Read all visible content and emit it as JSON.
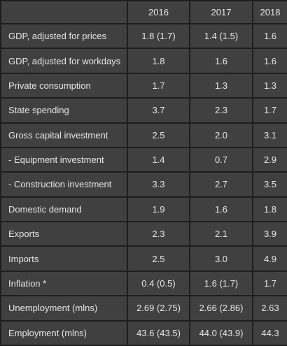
{
  "table": {
    "columns": [
      "",
      "2016",
      "2017",
      "2018"
    ],
    "rows": [
      {
        "label": "GDP, adjusted for prices",
        "values": [
          "1.8 (1.7)",
          "1.4 (1.5)",
          "1.6"
        ]
      },
      {
        "label": "GDP, adjusted for workdays",
        "values": [
          "1.8",
          "1.6",
          "1.6"
        ]
      },
      {
        "label": "Private consumption",
        "values": [
          "1.7",
          "1.3",
          "1.3"
        ]
      },
      {
        "label": "State spending",
        "values": [
          "3.7",
          "2.3",
          "1.7"
        ]
      },
      {
        "label": "Gross capital investment",
        "values": [
          "2.5",
          "2.0",
          "3.1"
        ]
      },
      {
        "label": "- Equipment investment",
        "values": [
          "1.4",
          "0.7",
          "2.9"
        ]
      },
      {
        "label": "- Construction investment",
        "values": [
          "3.3",
          "2.7",
          "3.5"
        ]
      },
      {
        "label": "Domestic demand",
        "values": [
          "1.9",
          "1.6",
          "1.8"
        ]
      },
      {
        "label": "Exports",
        "values": [
          "2.3",
          "2.1",
          "3.9"
        ]
      },
      {
        "label": "Imports",
        "values": [
          "2.5",
          "3.0",
          "4.9"
        ]
      },
      {
        "label": "Inflation *",
        "values": [
          "0.4 (0.5)",
          "1.6 (1.7)",
          "1.7"
        ]
      },
      {
        "label": "Unemployment (mlns)",
        "values": [
          "2.69 (2.75)",
          "2.66 (2.86)",
          "2.63"
        ]
      },
      {
        "label": "Employment (mlns)",
        "values": [
          "43.6 (43.5)",
          "44.0 (43.9)",
          "44.3"
        ]
      }
    ]
  },
  "colors": {
    "cell_background": "#404040",
    "grid_background": "#1e1e1e",
    "text": "#e6e6e6"
  }
}
